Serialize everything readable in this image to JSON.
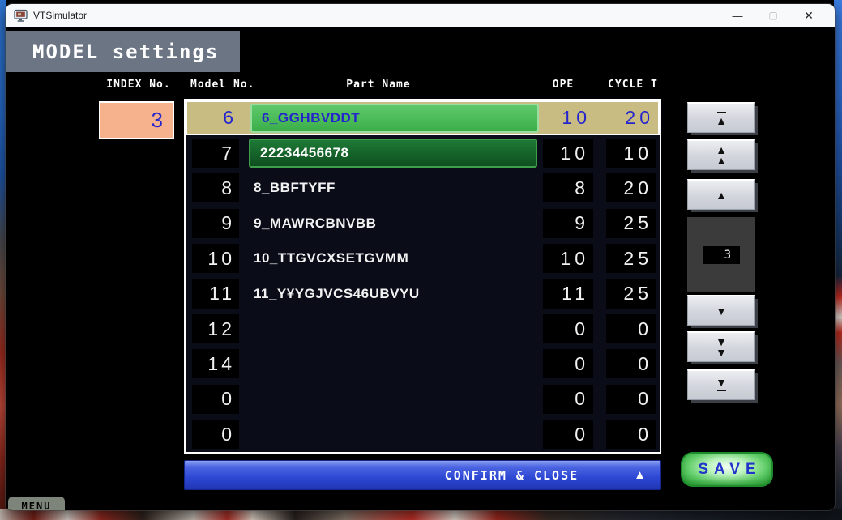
{
  "window": {
    "title": "VTSimulator",
    "controls": {
      "minimize": "—",
      "maximize": "▢",
      "close": "✕"
    }
  },
  "page": {
    "title": "MODEL settings"
  },
  "table": {
    "headers": {
      "index": "INDEX No.",
      "model": "Model No.",
      "part": "Part Name",
      "ope": "OPE",
      "cycle": "CYCLE T"
    },
    "index_value": "3",
    "rows": [
      {
        "model": "6",
        "part": "6_GGHBVDDT",
        "ope": "10",
        "cycle": "20",
        "selected": true,
        "part_style": "sel"
      },
      {
        "model": "7",
        "part": "22234456678",
        "ope": "10",
        "cycle": "10",
        "selected": false,
        "part_style": "edit"
      },
      {
        "model": "8",
        "part": "8_BBFTYFF",
        "ope": "8",
        "cycle": "20",
        "selected": false,
        "part_style": "plain"
      },
      {
        "model": "9",
        "part": "9_MAWRCBNVBB",
        "ope": "9",
        "cycle": "25",
        "selected": false,
        "part_style": "plain"
      },
      {
        "model": "10",
        "part": "10_TTGVCXSETGVMM",
        "ope": "10",
        "cycle": "25",
        "selected": false,
        "part_style": "plain"
      },
      {
        "model": "11",
        "part": "11_Y¥YGJVCS46UBVYU",
        "ope": "11",
        "cycle": "25",
        "selected": false,
        "part_style": "plain"
      },
      {
        "model": "12",
        "part": "",
        "ope": "0",
        "cycle": "0",
        "selected": false,
        "part_style": "none"
      },
      {
        "model": "14",
        "part": "",
        "ope": "0",
        "cycle": "0",
        "selected": false,
        "part_style": "none"
      },
      {
        "model": "0",
        "part": "",
        "ope": "0",
        "cycle": "0",
        "selected": false,
        "part_style": "none"
      },
      {
        "model": "0",
        "part": "",
        "ope": "0",
        "cycle": "0",
        "selected": false,
        "part_style": "none"
      }
    ]
  },
  "spinner": {
    "value": "3",
    "up_buttons": [
      {
        "name": "jump-to-top-button",
        "glyphs": [
          "dash",
          "up"
        ]
      },
      {
        "name": "page-up-button",
        "glyphs": [
          "up",
          "up"
        ]
      },
      {
        "name": "step-up-button",
        "glyphs": [
          "up"
        ]
      }
    ],
    "down_buttons": [
      {
        "name": "step-down-button",
        "glyphs": [
          "down"
        ]
      },
      {
        "name": "page-down-button",
        "glyphs": [
          "down",
          "down"
        ]
      },
      {
        "name": "jump-to-end-button",
        "glyphs": [
          "down",
          "dash"
        ]
      }
    ]
  },
  "actions": {
    "confirm": "CONFIRM & CLOSE",
    "confirm_arrow": "▲",
    "save": "SAVE",
    "menu": "MENU"
  },
  "colors": {
    "selected_row": "#c8bc82",
    "index_box": "#f6b28d",
    "value_text": "#2525cd",
    "part_box_selected": "#3aae49",
    "part_box_edit": "#156b2d",
    "confirm_bar": "#2e48d4",
    "save_green": "#2aa238",
    "header_gray": "#6b7584"
  }
}
